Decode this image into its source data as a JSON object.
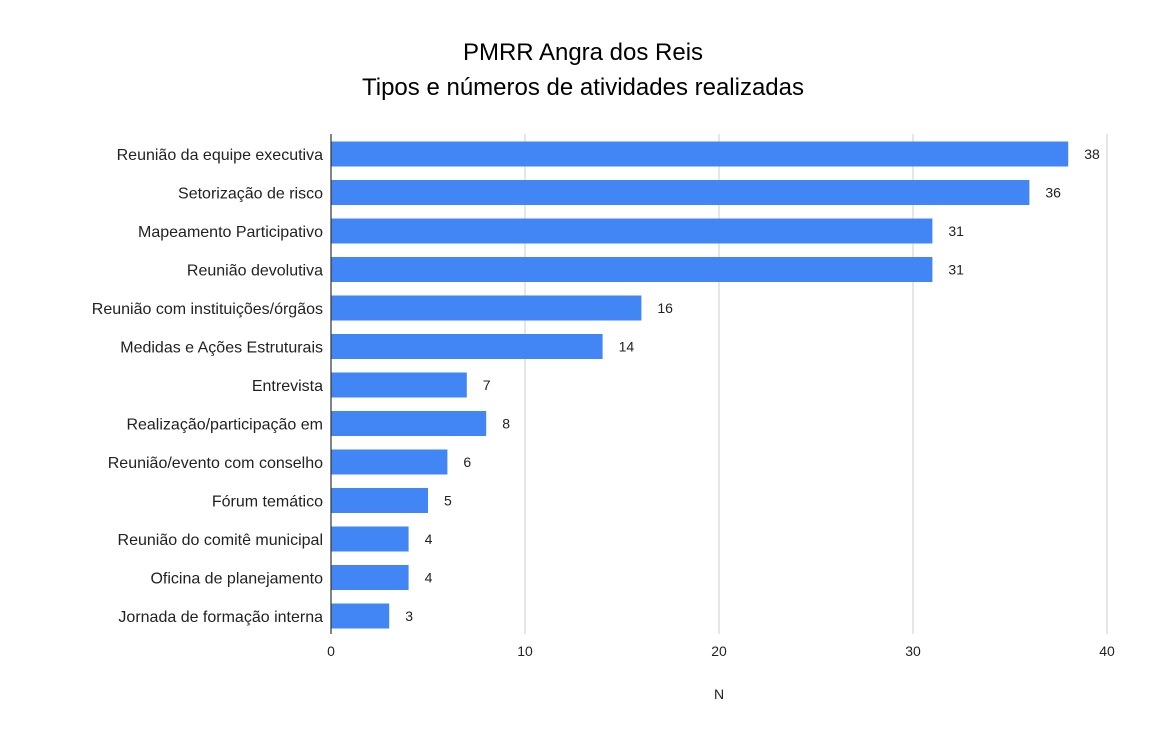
{
  "chart_data": {
    "type": "bar",
    "orientation": "horizontal",
    "title": [
      "PMRR Angra dos Reis",
      "Tipos e números de atividades realizadas"
    ],
    "xlabel": "N",
    "ylabel": "",
    "xlim": [
      0,
      40
    ],
    "xticks": [
      0,
      10,
      20,
      30,
      40
    ],
    "grid": true,
    "legend": "none",
    "bar_color": "#4285F4",
    "categories": [
      "Reunião da equipe executiva",
      "Setorização de risco",
      "Mapeamento Participativo",
      "Reunião devolutiva",
      "Reunião com instituições/órgãos",
      "Medidas e Ações Estruturais",
      "Entrevista",
      "Realização/participação em",
      "Reunião/evento com conselho",
      "Fórum temático",
      "Reunião do comitê municipal",
      "Oficina de planejamento",
      "Jornada de formação interna"
    ],
    "values": [
      38,
      36,
      31,
      31,
      16,
      14,
      7,
      8,
      6,
      5,
      4,
      4,
      3
    ]
  }
}
